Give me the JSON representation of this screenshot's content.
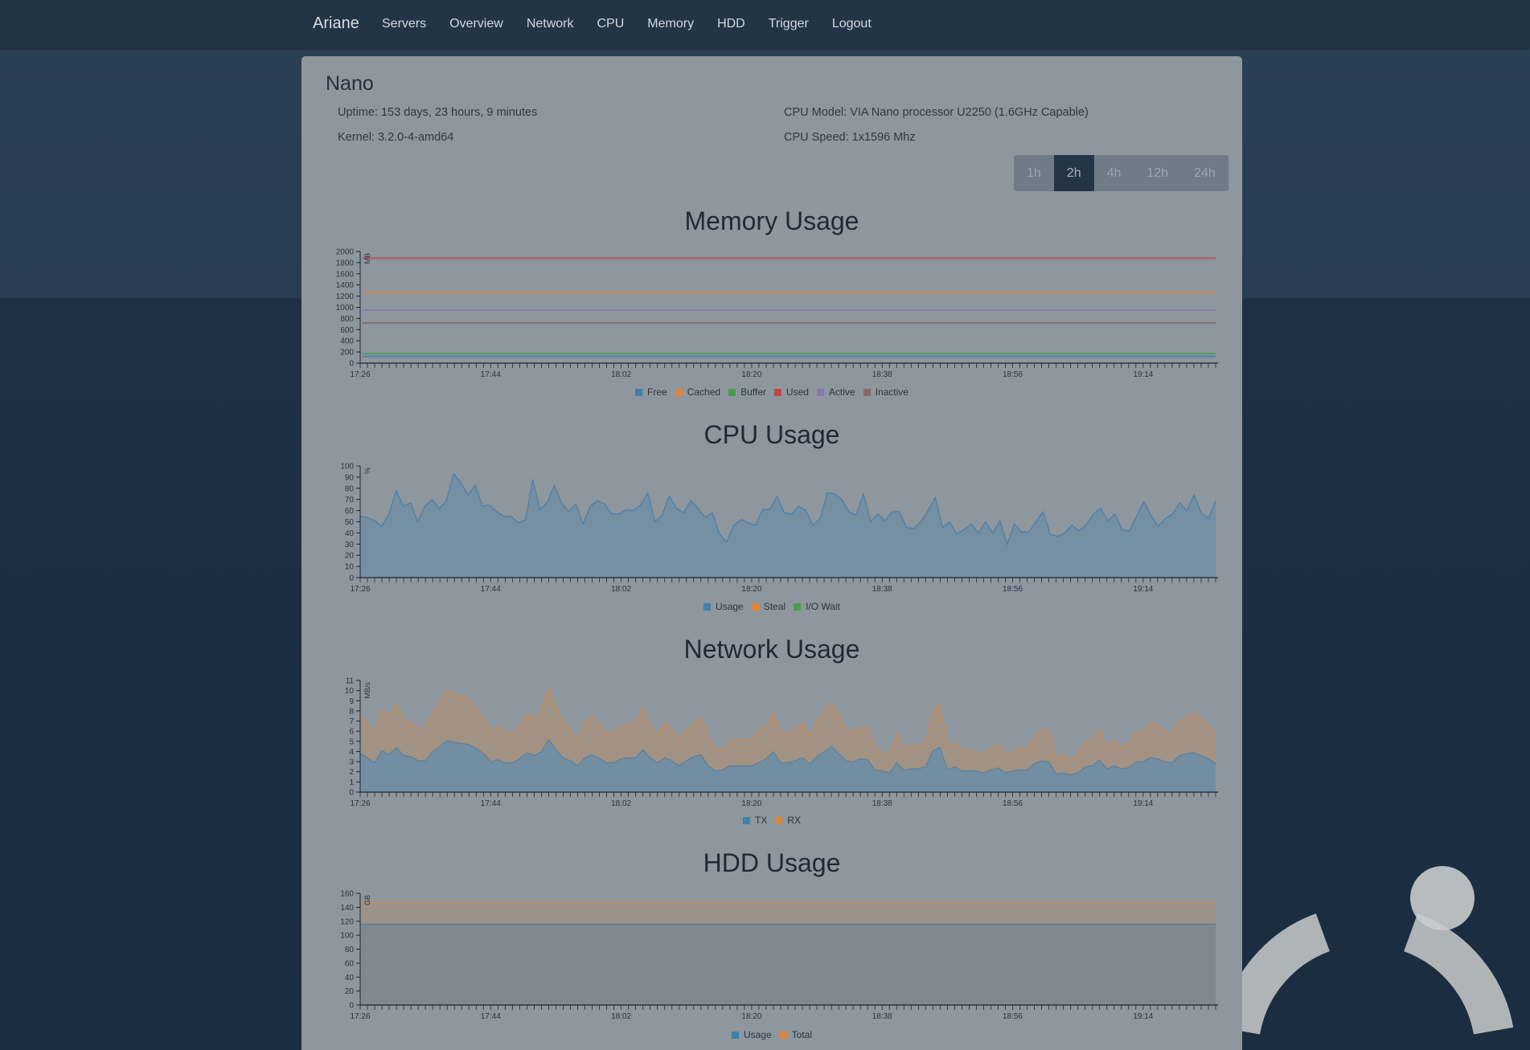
{
  "nav": {
    "brand": "Ariane",
    "links": [
      "Servers",
      "Overview",
      "Network",
      "CPU",
      "Memory",
      "HDD",
      "Trigger",
      "Logout"
    ]
  },
  "server": {
    "name": "Nano",
    "uptime": "Uptime: 153 days, 23 hours, 9 minutes",
    "kernel": "Kernel: 3.2.0-4-amd64",
    "cpu_model": "CPU Model: VIA Nano processor U2250 (1.6GHz Capable)",
    "cpu_speed": "CPU Speed: 1x1596 Mhz"
  },
  "ranges": {
    "options": [
      "1h",
      "2h",
      "4h",
      "12h",
      "24h"
    ],
    "selected": "2h"
  },
  "chart_data": [
    {
      "id": "memory",
      "title": "Memory Usage",
      "type": "line",
      "ylabel": "MB",
      "ylim": [
        0,
        2000
      ],
      "yticks": [
        0,
        200,
        400,
        600,
        800,
        1000,
        1200,
        1400,
        1600,
        1800,
        2000
      ],
      "xlim": [
        "17:26",
        "19:24"
      ],
      "xticks": [
        "17:26",
        "17:44",
        "18:02",
        "18:20",
        "18:38",
        "18:56",
        "19:14"
      ],
      "series": [
        {
          "name": "Free",
          "color": "#1f77b4",
          "constant": 120
        },
        {
          "name": "Cached",
          "color": "#ff7f0e",
          "constant": 1270
        },
        {
          "name": "Buffer",
          "color": "#2ca02c",
          "constant": 170
        },
        {
          "name": "Used",
          "color": "#d62728",
          "constant": 1880
        },
        {
          "name": "Active",
          "color": "#9467bd",
          "constant": 950
        },
        {
          "name": "Inactive",
          "color": "#8c564b",
          "constant": 720
        }
      ]
    },
    {
      "id": "cpu",
      "title": "CPU Usage",
      "type": "area",
      "ylabel": "%",
      "ylim": [
        0,
        100
      ],
      "yticks": [
        0,
        10,
        20,
        30,
        40,
        50,
        60,
        70,
        80,
        90,
        100
      ],
      "xlim": [
        "17:26",
        "19:24"
      ],
      "xticks": [
        "17:26",
        "17:44",
        "18:02",
        "18:20",
        "18:38",
        "18:56",
        "19:14"
      ],
      "series": [
        {
          "name": "Usage",
          "color": "#1f77b4",
          "values": [
            55,
            54,
            51,
            46,
            57,
            78,
            64,
            67,
            50,
            64,
            70,
            62,
            69,
            93,
            85,
            74,
            83,
            64,
            65,
            59,
            55,
            55,
            49,
            52,
            88,
            61,
            67,
            83,
            67,
            59,
            66,
            48,
            64,
            69,
            66,
            57,
            57,
            61,
            60,
            65,
            76,
            50,
            56,
            73,
            62,
            58,
            69,
            62,
            54,
            58,
            39,
            32,
            47,
            52,
            49,
            47,
            61,
            61,
            73,
            58,
            57,
            64,
            60,
            47,
            53,
            76,
            75,
            70,
            59,
            56,
            75,
            50,
            57,
            51,
            59,
            59,
            45,
            44,
            50,
            60,
            72,
            45,
            50,
            39,
            43,
            48,
            40,
            50,
            40,
            51,
            30,
            48,
            41,
            41,
            50,
            59,
            39,
            37,
            40,
            47,
            42,
            47,
            57,
            62,
            51,
            57,
            43,
            42,
            55,
            68,
            56,
            46,
            53,
            57,
            67,
            60,
            74,
            58,
            53,
            69
          ]
        },
        {
          "name": "Steal",
          "color": "#ff7f0e",
          "constant": 0
        },
        {
          "name": "I/O Wait",
          "color": "#2ca02c",
          "constant": 0
        }
      ]
    },
    {
      "id": "network",
      "title": "Network Usage",
      "type": "stacked-area",
      "ylabel": "MB/s",
      "ylim": [
        0,
        11
      ],
      "yticks": [
        0,
        1,
        2,
        3,
        4,
        5,
        6,
        7,
        8,
        9,
        10,
        11
      ],
      "xlim": [
        "17:26",
        "19:24"
      ],
      "xticks": [
        "17:26",
        "17:44",
        "18:02",
        "18:20",
        "18:38",
        "18:56",
        "19:14"
      ],
      "series": [
        {
          "name": "TX",
          "color": "#1f77b4",
          "values": [
            3.8,
            3.4,
            2.9,
            4.1,
            3.7,
            4.4,
            3.6,
            3.5,
            3.1,
            3.1,
            4,
            4.5,
            5.1,
            4.9,
            4.8,
            4.7,
            4.3,
            3.8,
            3,
            3.2,
            2.9,
            2.9,
            3.3,
            3.9,
            3.6,
            4,
            5.2,
            4.2,
            3.4,
            3.1,
            2.6,
            3.4,
            3.7,
            3.3,
            2.9,
            2.9,
            3.3,
            3.4,
            3.4,
            4.2,
            3.4,
            2.9,
            3.4,
            3.1,
            2.6,
            3.1,
            3.5,
            3.7,
            2.6,
            2.1,
            2.2,
            2.6,
            2.6,
            2.6,
            2.6,
            2.9,
            3.3,
            4,
            2.9,
            2.9,
            3.1,
            3.4,
            2.8,
            3.5,
            4,
            4.5,
            3.8,
            3.1,
            3,
            3.3,
            3.2,
            2.2,
            2.1,
            1.9,
            2.9,
            2.2,
            2.3,
            2.3,
            2.5,
            4.1,
            4.4,
            2.2,
            2.5,
            2.1,
            2.1,
            2.1,
            1.9,
            2.2,
            2.4,
            1.9,
            2.1,
            2.2,
            2.2,
            2.8,
            3.1,
            3,
            1.8,
            1.9,
            1.7,
            1.9,
            2.5,
            2.6,
            3.2,
            2.3,
            2.6,
            2.3,
            2.4,
            3,
            3,
            3.4,
            3.3,
            3,
            2.9,
            3.6,
            3.8,
            3.9,
            3.6,
            3.3,
            2.8
          ]
        },
        {
          "name": "RX",
          "color": "#ff7f0e",
          "values": [
            3.7,
            3.2,
            2.8,
            4,
            3.7,
            4.3,
            3.5,
            3.3,
            3.1,
            3.1,
            3.8,
            4.4,
            5,
            4.7,
            4.7,
            4.5,
            4,
            3.5,
            3,
            3.2,
            2.9,
            2.9,
            3.2,
            3.8,
            3.5,
            4,
            5.1,
            4.1,
            3.4,
            3.1,
            2.4,
            3.5,
            3.7,
            3.3,
            2.8,
            2.9,
            3.2,
            3.3,
            3.3,
            4.1,
            3.1,
            2.7,
            3.5,
            2.9,
            2.5,
            3,
            3.3,
            3.5,
            2.9,
            2,
            2,
            2.4,
            2.6,
            2.5,
            2.6,
            3.1,
            3.2,
            3.8,
            3,
            2.8,
            3.1,
            3.4,
            2.7,
            3.4,
            3.8,
            4.3,
            3.8,
            3.1,
            2.9,
            3.1,
            3.1,
            2.1,
            1.9,
            1.7,
            2.8,
            2.1,
            2.3,
            2.2,
            2.5,
            3.9,
            4.3,
            2.2,
            2.4,
            2,
            2,
            1.9,
            1.7,
            2.1,
            2.3,
            1.7,
            1.8,
            2.2,
            2.1,
            2.5,
            3.1,
            2.9,
            1.6,
            1.8,
            1.5,
            1.8,
            2.5,
            2.5,
            3,
            2.1,
            2.4,
            2.1,
            2.4,
            2.9,
            2.9,
            3.4,
            3.3,
            3,
            2.7,
            3.4,
            3.5,
            3.9,
            3.6,
            3.3,
            2.8
          ]
        }
      ]
    },
    {
      "id": "hdd",
      "title": "HDD Usage",
      "type": "area",
      "ylabel": "GB",
      "ylim": [
        0,
        160
      ],
      "yticks": [
        0,
        20,
        40,
        60,
        80,
        100,
        120,
        140,
        160
      ],
      "xlim": [
        "17:26",
        "19:24"
      ],
      "xticks": [
        "17:26",
        "17:44",
        "18:02",
        "18:20",
        "18:38",
        "18:56",
        "19:14"
      ],
      "series": [
        {
          "name": "Usage",
          "color": "#1f77b4",
          "constant": 116
        },
        {
          "name": "Total",
          "color": "#ff7f0e",
          "constant": 147
        }
      ]
    }
  ]
}
